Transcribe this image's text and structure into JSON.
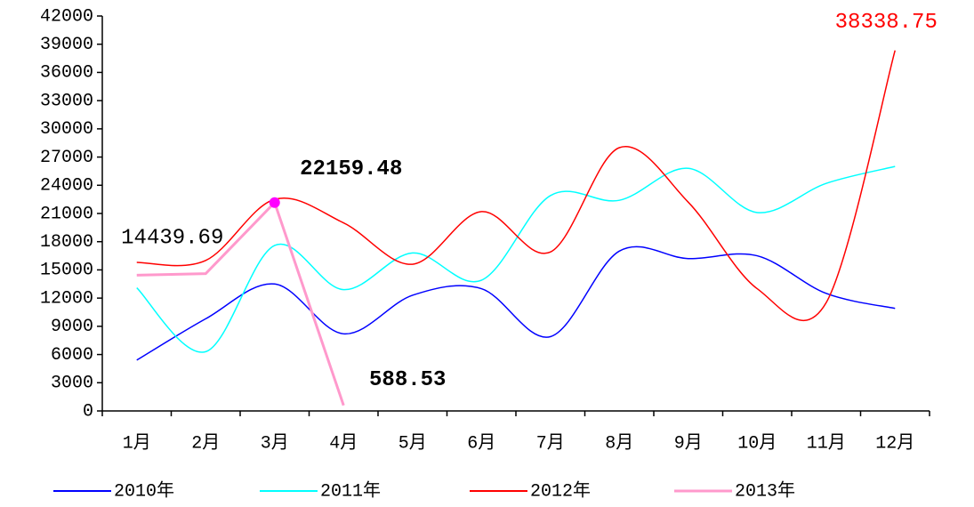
{
  "chart_data": {
    "type": "line",
    "categories": [
      "1月",
      "2月",
      "3月",
      "4月",
      "5月",
      "6月",
      "7月",
      "8月",
      "9月",
      "10月",
      "11月",
      "12月"
    ],
    "series": [
      {
        "name": "2010年",
        "color": "#0000ff",
        "smooth": true,
        "values": [
          5400,
          9800,
          13500,
          8200,
          12300,
          13000,
          7900,
          17000,
          16200,
          16500,
          12500,
          10900
        ]
      },
      {
        "name": "2011年",
        "color": "#00ffff",
        "smooth": true,
        "values": [
          13100,
          6300,
          17600,
          12900,
          16800,
          13900,
          22900,
          22400,
          25800,
          21100,
          24200,
          26000
        ]
      },
      {
        "name": "2012年",
        "color": "#ff0000",
        "smooth": true,
        "values": [
          15800,
          16000,
          22500,
          20000,
          15600,
          21200,
          16900,
          28000,
          22200,
          13000,
          11500,
          38338.75
        ],
        "value_labels": [
          null,
          null,
          null,
          null,
          null,
          null,
          null,
          null,
          null,
          null,
          null,
          "38338.75"
        ]
      },
      {
        "name": "2013年",
        "color": "#ff99cc",
        "smooth": false,
        "values": [
          14439.69,
          14600,
          22159.48,
          588.53,
          null,
          null,
          null,
          null,
          null,
          null,
          null,
          null
        ],
        "value_labels": [
          "14439.69",
          null,
          "22159.48",
          "588.53",
          null,
          null,
          null,
          null,
          null,
          null,
          null,
          null
        ]
      }
    ],
    "ylim": [
      0,
      42000
    ],
    "yticks": [
      0,
      3000,
      6000,
      9000,
      12000,
      15000,
      18000,
      21000,
      24000,
      27000,
      30000,
      33000,
      36000,
      39000,
      42000
    ],
    "legend": "bottom"
  }
}
